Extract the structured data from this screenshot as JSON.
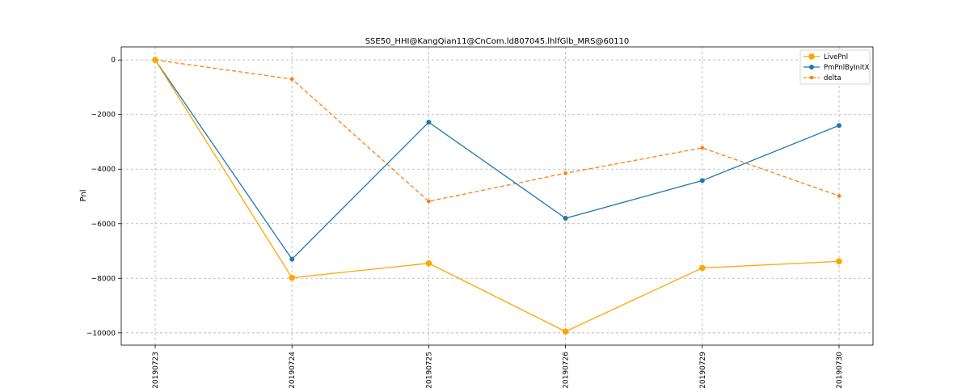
{
  "chart_data": {
    "type": "line",
    "title": "SSE50_HHI@KangQian11@CnCom.ld807045.lhlfGlb_MRS@60110",
    "xlabel": "",
    "ylabel": "Pnl",
    "categories": [
      "20190723",
      "20190724",
      "20190725",
      "20190726",
      "20190729",
      "20190730"
    ],
    "ylim": [
      -10450,
      480
    ],
    "yticks": [
      0,
      -2000,
      -4000,
      -6000,
      -8000,
      -10000
    ],
    "grid": true,
    "legend_position": "top-right",
    "series": [
      {
        "name": "LivePnl",
        "values": [
          0,
          -7980,
          -7450,
          -9950,
          -7620,
          -7380
        ],
        "color": "#ffa500",
        "style": "solid",
        "marker": "large-circle"
      },
      {
        "name": "PmPnlByInitX",
        "values": [
          0,
          -7300,
          -2280,
          -5800,
          -4420,
          -2400
        ],
        "color": "#1f77b4",
        "style": "solid",
        "marker": "circle"
      },
      {
        "name": "delta",
        "values": [
          0,
          -700,
          -5180,
          -4150,
          -3220,
          -4980
        ],
        "color": "#ff7f0e",
        "style": "dashed",
        "marker": "small-circle"
      }
    ]
  }
}
